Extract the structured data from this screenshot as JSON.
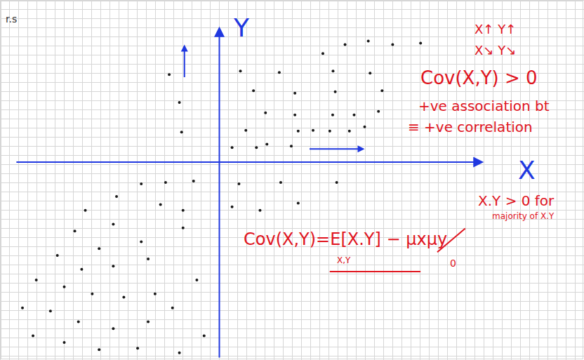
{
  "chart_data": {
    "type": "scatter",
    "x_label": "X",
    "y_label": "Y",
    "color": "#1a1a1a",
    "marker": "dot",
    "tick_labels": false,
    "xlim": [
      -6,
      10
    ],
    "ylim": [
      -5.5,
      4.5
    ],
    "x": [
      2.85,
      3.46,
      4.1,
      4.77,
      5.54,
      0.58,
      1.65,
      3.13,
      4.15,
      0.94,
      2.08,
      3.19,
      4.48,
      1.27,
      2.08,
      3.12,
      3.71,
      4.38,
      0.73,
      2.17,
      2.58,
      3.04,
      3.58,
      4.0,
      0.35,
      1.02,
      1.31,
      1.98,
      -1.1,
      -1.04,
      -1.38,
      0.54,
      0.35,
      1.69,
      2.17,
      3.23,
      1.12,
      -1.48,
      -0.71,
      -2.15,
      -2.83,
      -1.62,
      -1.0,
      -3.69,
      -2.92,
      -2.15,
      -1.0,
      -3.98,
      -3.31,
      -4.46,
      -3.79,
      -2.92,
      -1.96,
      -5.04,
      -4.27,
      -3.5,
      -2.63,
      -1.77,
      -5.42,
      -4.65,
      -3.88,
      -2.92,
      -1.96,
      -5.13,
      -4.27,
      -3.31,
      -2.25,
      -1.1,
      -0.42,
      -1.29,
      -0.62
    ],
    "values": [
      3.04,
      3.29,
      3.39,
      3.29,
      3.33,
      2.55,
      2.51,
      2.55,
      2.49,
      2.0,
      1.93,
      1.97,
      2.0,
      1.38,
      1.32,
      1.32,
      1.32,
      1.42,
      0.89,
      0.87,
      0.89,
      0.87,
      0.87,
      0.99,
      0.41,
      0.41,
      0.5,
      0.45,
      1.67,
      0.84,
      2.45,
      -0.61,
      -1.25,
      -0.57,
      -1.15,
      -0.57,
      -1.35,
      -0.57,
      -0.53,
      -0.61,
      -0.96,
      -1.19,
      -1.35,
      -1.35,
      -1.74,
      -2.23,
      -1.84,
      -1.93,
      -2.42,
      -2.61,
      -3.0,
      -2.91,
      -2.71,
      -3.3,
      -3.49,
      -3.69,
      -3.78,
      -3.69,
      -4.08,
      -4.17,
      -4.47,
      -4.66,
      -4.47,
      -4.86,
      -5.05,
      -5.25,
      -5.21,
      -5.34,
      -4.86,
      -4.08,
      -3.3
    ],
    "annotations": [
      "r.s",
      "X↑ Y↑",
      "X↘ Y↘",
      "Cov(X,Y) > 0",
      "+ve association bt",
      "≡ +ve correlation",
      "X.Y > 0 for",
      "majority of X.Y",
      "Cov(X,Y)=E[X.Y] − μxμy",
      "X,Y",
      "0"
    ]
  }
}
